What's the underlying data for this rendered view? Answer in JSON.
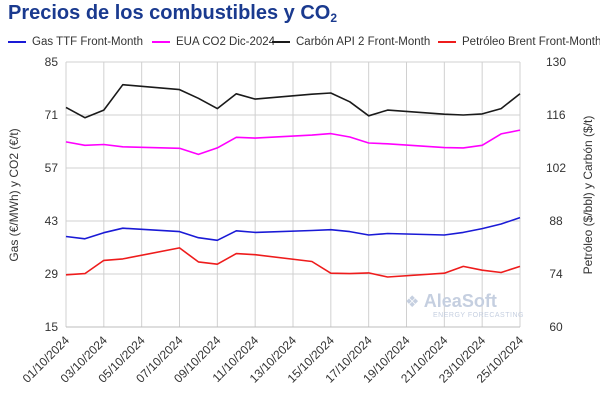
{
  "title_main": "Precios de los combustibles y CO",
  "title_sub": "2",
  "watermark": {
    "brand": "AleaSoft",
    "tagline": "ENERGY FORECASTING"
  },
  "chart_data": {
    "type": "line",
    "xlabel": "",
    "y_left_label": "Gas (€/MWh) y CO2 (€/t)",
    "y_right_label": "Petróleo ($/bbl) y Carbón ($/t)",
    "y_left_lim": [
      15,
      85
    ],
    "y_right_lim": [
      60,
      130
    ],
    "y_left_ticks": [
      15,
      29,
      43,
      57,
      71,
      85
    ],
    "y_right_ticks": [
      60,
      74,
      88,
      102,
      116,
      130
    ],
    "x_tick_labels": [
      "01/10/2024",
      "03/10/2024",
      "05/10/2024",
      "07/10/2024",
      "09/10/2024",
      "11/10/2024",
      "13/10/2024",
      "15/10/2024",
      "17/10/2024",
      "19/10/2024",
      "21/10/2024",
      "23/10/2024",
      "25/10/2024"
    ],
    "x": [
      "01/10/2024",
      "02/10/2024",
      "03/10/2024",
      "04/10/2024",
      "07/10/2024",
      "08/10/2024",
      "09/10/2024",
      "10/10/2024",
      "11/10/2024",
      "14/10/2024",
      "15/10/2024",
      "16/10/2024",
      "17/10/2024",
      "18/10/2024",
      "21/10/2024",
      "22/10/2024",
      "23/10/2024",
      "24/10/2024",
      "25/10/2024"
    ],
    "x_pos": [
      0,
      1,
      2,
      3,
      6,
      7,
      8,
      9,
      10,
      13,
      14,
      15,
      16,
      17,
      20,
      21,
      22,
      23,
      24
    ],
    "grid": true,
    "legend_position": "top",
    "series": [
      {
        "name": "Gas TTF Front-Month",
        "axis": "left",
        "color": "#1a1ad6",
        "values": [
          38.9,
          38.3,
          39.9,
          41.1,
          40.2,
          38.6,
          37.9,
          40.4,
          40.0,
          40.5,
          40.7,
          40.2,
          39.3,
          39.7,
          39.3,
          40.0,
          41.0,
          42.2,
          43.9
        ]
      },
      {
        "name": "EUA CO2 Dic-2024",
        "axis": "left",
        "color": "#ff00ff",
        "values": [
          63.9,
          63.0,
          63.2,
          62.6,
          62.2,
          60.6,
          62.3,
          65.1,
          64.9,
          65.7,
          66.1,
          65.2,
          63.6,
          63.4,
          62.4,
          62.3,
          63.0,
          66.0,
          67.0
        ]
      },
      {
        "name": "Carbón API 2 Front-Month",
        "axis": "right",
        "color": "#1a1a1a",
        "values": [
          118.0,
          115.3,
          117.3,
          124.0,
          122.7,
          120.4,
          117.7,
          121.6,
          120.2,
          121.5,
          121.8,
          119.5,
          115.8,
          117.3,
          116.2,
          116.0,
          116.3,
          117.7,
          121.6
        ]
      },
      {
        "name": "Petróleo Brent Front-Month",
        "axis": "right",
        "color": "#ee1c1c",
        "values": [
          73.8,
          74.1,
          77.6,
          78.0,
          80.9,
          77.2,
          76.6,
          79.4,
          79.1,
          77.3,
          74.2,
          74.1,
          74.3,
          73.2,
          74.2,
          76.0,
          75.0,
          74.4,
          76.0
        ]
      }
    ]
  }
}
